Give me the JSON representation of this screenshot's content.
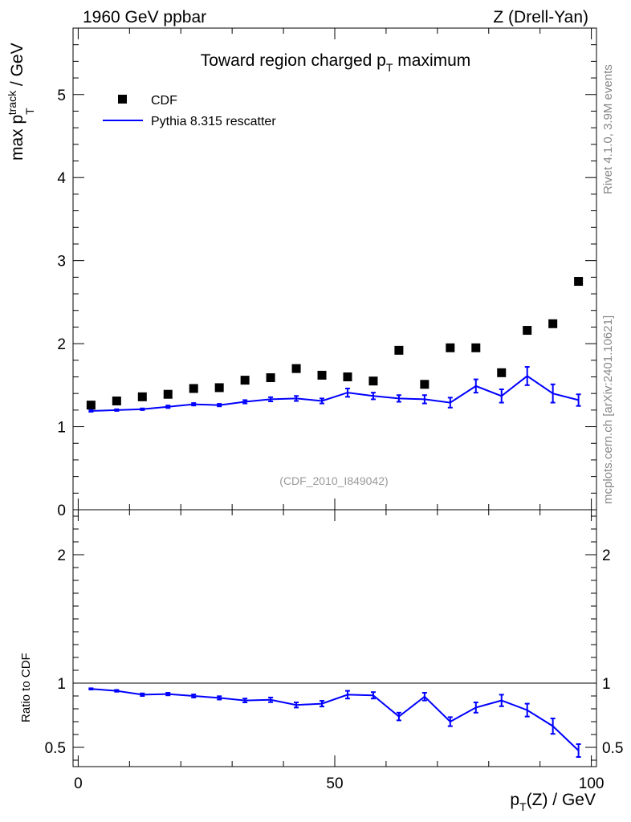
{
  "header": {
    "left": "1960 GeV ppbar",
    "right": "Z (Drell-Yan)"
  },
  "side_labels": {
    "rivet": "Rivet 4.1.0,  3.9M events",
    "mcplots": "mcplots.cern.ch [arXiv:2401.10621]"
  },
  "colors": {
    "data": "#000000",
    "mc": "#0000ff",
    "analysis_id": "#999999"
  },
  "chart_data": [
    {
      "type": "scatter",
      "title": "Toward region charged p_T maximum",
      "title_parts": {
        "main": "Toward region charged p",
        "sub": "T",
        "tail": " maximum"
      },
      "ylabel": "max p_T^track / GeV",
      "ylabel_parts": {
        "main": "max p",
        "sub": "T",
        "sup": "track",
        "tail": " / GeV"
      },
      "analysis_id": "(CDF_2010_I849042)",
      "xlim": [
        -1,
        101
      ],
      "ylim": [
        0,
        5.8
      ],
      "yticks": [
        0,
        1,
        2,
        3,
        4,
        5
      ],
      "ytick_labels": [
        "0",
        "1",
        "2",
        "3",
        "4",
        "5"
      ],
      "legend": {
        "placement": "top-left",
        "entries": [
          "CDF",
          "Pythia 8.315 rescatter"
        ]
      },
      "x": [
        2.5,
        7.5,
        12.5,
        17.5,
        22.5,
        27.5,
        32.5,
        37.5,
        42.5,
        47.5,
        52.5,
        57.5,
        62.5,
        67.5,
        72.5,
        77.5,
        82.5,
        87.5,
        92.5,
        97.5
      ],
      "series": [
        {
          "name": "CDF",
          "marker": "square",
          "values": [
            1.26,
            1.31,
            1.36,
            1.39,
            1.46,
            1.47,
            1.56,
            1.59,
            1.7,
            1.62,
            1.6,
            1.55,
            1.92,
            1.51,
            1.95,
            1.95,
            1.65,
            2.16,
            2.24,
            2.75
          ],
          "errors": [
            0.02,
            0.02,
            0.02,
            0.02,
            0.02,
            0.02,
            0.02,
            0.02,
            0.02,
            0.02,
            0.02,
            0.02,
            0.02,
            0.02,
            0.02,
            0.02,
            0.02,
            0.02,
            0.02,
            0.02
          ]
        },
        {
          "name": "Pythia 8.315 rescatter",
          "marker": "line",
          "values": [
            1.19,
            1.2,
            1.21,
            1.24,
            1.27,
            1.26,
            1.3,
            1.33,
            1.34,
            1.31,
            1.41,
            1.37,
            1.34,
            1.33,
            1.29,
            1.49,
            1.37,
            1.61,
            1.4,
            1.32
          ],
          "errors": [
            0.01,
            0.01,
            0.01,
            0.015,
            0.015,
            0.015,
            0.02,
            0.025,
            0.03,
            0.03,
            0.05,
            0.04,
            0.04,
            0.05,
            0.06,
            0.08,
            0.08,
            0.11,
            0.11,
            0.07
          ]
        }
      ]
    },
    {
      "type": "line",
      "title": "",
      "ylabel": "Ratio to CDF",
      "xlabel": "p_T(Z) / GeV",
      "xlabel_parts": {
        "main": "p",
        "sub": "T",
        "tail": "(Z) / GeV"
      },
      "xlim": [
        -1,
        101
      ],
      "ylim": [
        0.35,
        2.35
      ],
      "yticks": [
        0.5,
        1,
        2
      ],
      "ytick_labels": [
        "0.5",
        "1",
        "2"
      ],
      "xticks": [
        0,
        50,
        100
      ],
      "xtick_labels": [
        "0",
        "50",
        "100"
      ],
      "reference_line": 1,
      "x": [
        2.5,
        7.5,
        12.5,
        17.5,
        22.5,
        27.5,
        32.5,
        37.5,
        42.5,
        47.5,
        52.5,
        57.5,
        62.5,
        67.5,
        72.5,
        77.5,
        82.5,
        87.5,
        92.5,
        97.5
      ],
      "series": [
        {
          "name": "Pythia 8.315 rescatter / CDF",
          "values": [
            0.955,
            0.94,
            0.91,
            0.915,
            0.9,
            0.885,
            0.865,
            0.87,
            0.83,
            0.84,
            0.91,
            0.905,
            0.74,
            0.895,
            0.7,
            0.81,
            0.865,
            0.79,
            0.665,
            0.475
          ],
          "errors": [
            0.005,
            0.007,
            0.01,
            0.01,
            0.012,
            0.013,
            0.015,
            0.018,
            0.02,
            0.022,
            0.03,
            0.025,
            0.03,
            0.03,
            0.035,
            0.04,
            0.045,
            0.05,
            0.06,
            0.05
          ]
        }
      ]
    }
  ]
}
